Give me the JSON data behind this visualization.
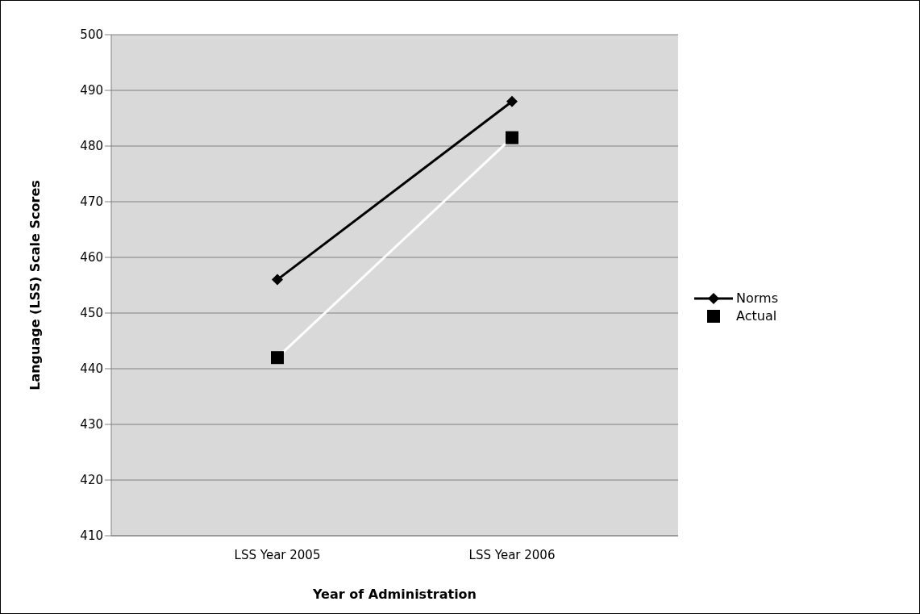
{
  "chart_data": {
    "type": "line",
    "xlabel": "Year of Administration",
    "ylabel": "Language (LSS) Scale Scores",
    "categories": [
      "LSS Year 2005",
      "LSS Year 2006"
    ],
    "series": [
      {
        "name": "Norms",
        "color": "#000000",
        "marker": "diamond",
        "values": [
          456,
          488
        ]
      },
      {
        "name": "Actual",
        "color": "#ffffff",
        "marker": "square",
        "values": [
          442,
          481.5
        ]
      }
    ],
    "ylim": [
      410,
      500
    ],
    "yticks": [
      410,
      420,
      430,
      440,
      450,
      460,
      470,
      480,
      490,
      500
    ],
    "grid": "y",
    "legend": "right"
  }
}
